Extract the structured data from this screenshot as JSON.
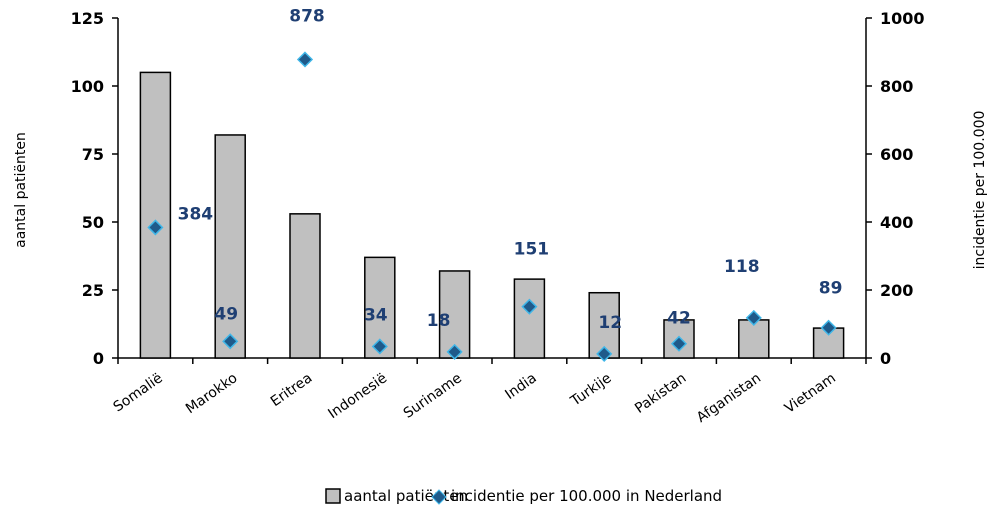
{
  "chart_data": {
    "type": "bar",
    "categories": [
      "Somalië",
      "Marokko",
      "Eritrea",
      "Indonesië",
      "Suriname",
      "India",
      "Turkije",
      "Pakistan",
      "Afganistan",
      "Vietnam"
    ],
    "series": [
      {
        "name": "aantal patiënten",
        "type": "bar",
        "axis": "left",
        "values": [
          105,
          82,
          53,
          37,
          32,
          29,
          24,
          14,
          14,
          11
        ]
      },
      {
        "name": "incidentie per 100.000 in Nederland",
        "type": "scatter",
        "axis": "right",
        "values": [
          384,
          49,
          878,
          34,
          18,
          151,
          12,
          42,
          118,
          89
        ]
      }
    ],
    "data_labels": [
      "384",
      "49",
      "878",
      "34",
      "18",
      "151",
      "12",
      "42",
      "118",
      "89"
    ],
    "ylabel": "aantal patiënten",
    "y2label": "incidentie per 100.000",
    "ylim": [
      0,
      125
    ],
    "y2lim": [
      0,
      1000
    ],
    "yticks": [
      "0",
      "25",
      "50",
      "75",
      "100",
      "125"
    ],
    "y2ticks": [
      "0",
      "200",
      "400",
      "600",
      "800",
      "1000"
    ],
    "grid": false,
    "legend_position": "bottom",
    "colors": {
      "bar": "#c0c0c0",
      "bar_stroke": "#000000",
      "marker": "#1f5a8a",
      "marker_edge": "#3fb6e8",
      "label": "#1f3f73"
    }
  }
}
